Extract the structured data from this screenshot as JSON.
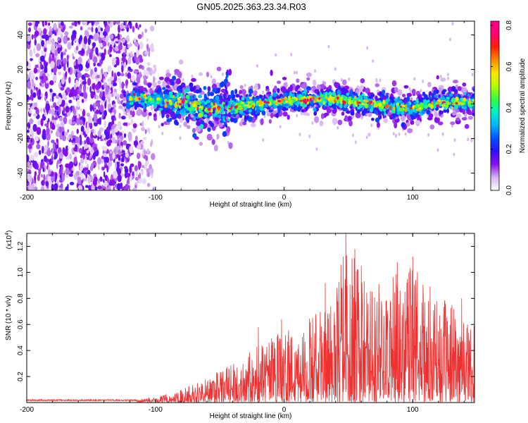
{
  "title": "GN05.2025.363.23.34.R03",
  "chart_data": [
    {
      "type": "heatmap",
      "xlabel": "Height of straight line (km)",
      "ylabel": "Frequency (Hz)",
      "xlim": [
        -200,
        148
      ],
      "ylim": [
        -50,
        48
      ],
      "xticks": [
        -200,
        -100,
        0,
        100
      ],
      "xtick_labels": [
        "-200",
        "-100",
        "0",
        "100"
      ],
      "yticks": [
        -40,
        -20,
        0,
        20,
        40
      ],
      "ytick_labels": [
        "-40",
        "-20",
        "0",
        "20",
        "40"
      ],
      "colorbar": {
        "label": "Normalized spectral amplitude",
        "range": [
          0,
          0.82
        ],
        "ticks": [
          0,
          0.2,
          0.4,
          0.6,
          0.8
        ],
        "tick_labels": [
          "0.0",
          "0.2",
          "0.4",
          "0.6",
          "0.8"
        ],
        "colors": [
          "#ffffff",
          "#d6b4f0",
          "#8b10e8",
          "#3010ff",
          "#0050ff",
          "#00b4ff",
          "#00f0c8",
          "#30ff40",
          "#b0ff00",
          "#ffe600",
          "#ff8c00",
          "#ff2000",
          "#ff0070",
          "#ff0090"
        ]
      },
      "features": {
        "noise_region_x": [
          -200,
          -105
        ],
        "signal_ridge_frequency_hz": [
          [
            -120,
            4
          ],
          [
            -90,
            2
          ],
          [
            -60,
            -3
          ],
          [
            -40,
            -2
          ],
          [
            -20,
            0
          ],
          [
            0,
            2
          ],
          [
            30,
            3
          ],
          [
            60,
            1
          ],
          [
            80,
            -1
          ],
          [
            100,
            -3
          ],
          [
            120,
            1
          ],
          [
            148,
            1
          ]
        ],
        "peak_amplitude": 0.82
      }
    },
    {
      "type": "line",
      "xlabel": "Height of straight line (km)",
      "ylabel": "SNR (10 * v/v)",
      "yscale_label": "(x10^4)",
      "xlim": [
        -200,
        148
      ],
      "ylim": [
        0,
        1.3
      ],
      "xticks": [
        -200,
        -100,
        0,
        100
      ],
      "xtick_labels": [
        "-200",
        "-100",
        "0",
        "100"
      ],
      "yticks": [
        0.2,
        0.4,
        0.6,
        0.8,
        1.0,
        1.2
      ],
      "ytick_labels": [
        "0.2",
        "0.4",
        "0.6",
        "0.8",
        "1.0",
        "1.2"
      ],
      "series": [
        {
          "name": "SNR",
          "color": "#ee3030",
          "envelope": [
            [
              -200,
              0.02
            ],
            [
              -120,
              0.02
            ],
            [
              -100,
              0.04
            ],
            [
              -80,
              0.1
            ],
            [
              -60,
              0.2
            ],
            [
              -40,
              0.3
            ],
            [
              -20,
              0.45
            ],
            [
              0,
              0.55
            ],
            [
              20,
              0.65
            ],
            [
              40,
              0.85
            ],
            [
              48,
              1.3
            ],
            [
              60,
              1.0
            ],
            [
              80,
              0.95
            ],
            [
              100,
              1.1
            ],
            [
              120,
              0.8
            ],
            [
              148,
              0.7
            ]
          ],
          "peaks": [
            [
              48,
              1.3
            ],
            [
              55,
              1.18
            ],
            [
              46,
              1.12
            ],
            [
              100,
              1.12
            ],
            [
              88,
              1.08
            ],
            [
              60,
              1.05
            ],
            [
              32,
              0.92
            ],
            [
              97,
              1.0
            ],
            [
              -2,
              0.64
            ],
            [
              -20,
              0.58
            ],
            [
              138,
              0.8
            ]
          ]
        }
      ]
    }
  ]
}
